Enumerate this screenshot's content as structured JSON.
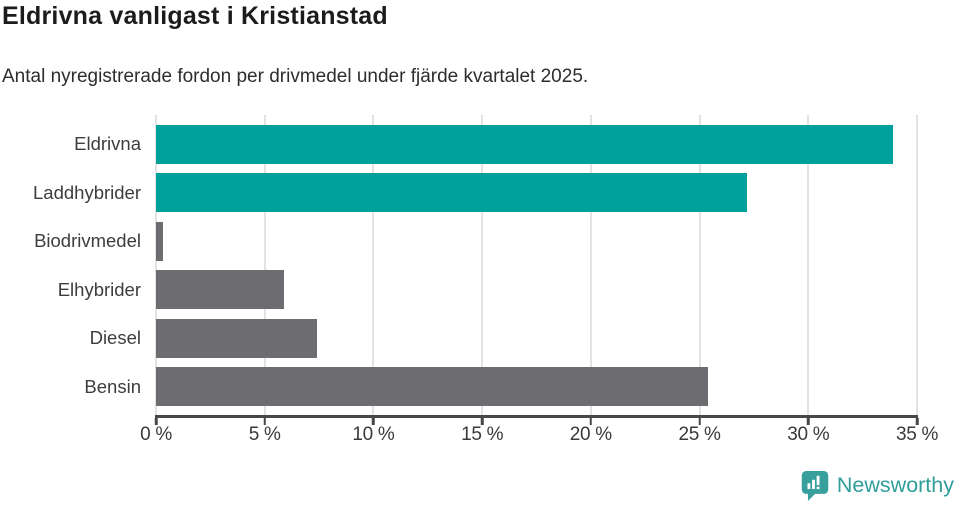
{
  "header": {
    "title": "Eldrivna vanligast i Kristianstad",
    "subtitle": "Antal nyregistrerade fordon per drivmedel under fjärde kvartalet 2025."
  },
  "chart_data": {
    "type": "bar",
    "orientation": "horizontal",
    "title": "Eldrivna vanligast i Kristianstad",
    "subtitle": "Antal nyregistrerade fordon per drivmedel under fjärde kvartalet 2025.",
    "categories": [
      "Eldrivna",
      "Laddhybrider",
      "Biodrivmedel",
      "Elhybrider",
      "Diesel",
      "Bensin"
    ],
    "values": [
      33.9,
      27.2,
      0.3,
      5.9,
      7.4,
      25.4
    ],
    "value_unit": "%",
    "xlim": [
      0,
      35
    ],
    "x_ticks": [
      0,
      5,
      10,
      15,
      20,
      25,
      30,
      35
    ],
    "x_tick_labels": [
      "0 %",
      "5 %",
      "10 %",
      "15 %",
      "20 %",
      "25 %",
      "30 %",
      "35 %"
    ],
    "grid": true,
    "legend": false,
    "colors": {
      "highlight": "#00A19A",
      "default": "#6C6C71",
      "gridline": "#E3E3E3",
      "axis": "#474747"
    },
    "bar_colors": [
      "#00A19A",
      "#00A19A",
      "#6C6C71",
      "#6C6C71",
      "#6C6C71",
      "#6C6C71"
    ]
  },
  "footer": {
    "brand": "Newsworthy",
    "brand_color": "#2F9E9B",
    "logo_icon": "bar-chart-speech-bubble-icon"
  }
}
